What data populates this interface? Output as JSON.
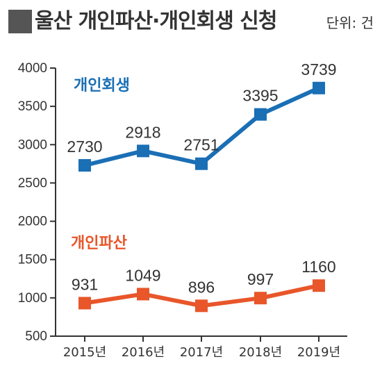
{
  "header": {
    "title": "울산 개인파산·개인회생 신청",
    "unit": "단위: 건",
    "marker_color": "#555555"
  },
  "chart_data": {
    "type": "line",
    "title": "울산 개인파산·개인회생 신청",
    "xlabel": "",
    "ylabel": "",
    "unit": "단위: 건",
    "categories": [
      "2015년",
      "2016년",
      "2017년",
      "2018년",
      "2019년"
    ],
    "yticks": [
      "4000",
      "3500",
      "3000",
      "2500",
      "2000",
      "1500",
      "1000",
      "500"
    ],
    "ylim": [
      500,
      4000
    ],
    "grid": false,
    "series": [
      {
        "name": "개인회생",
        "color": "#1a6fb5",
        "values": [
          2730,
          2918,
          2751,
          3395,
          3739
        ]
      },
      {
        "name": "개인파산",
        "color": "#e8562a",
        "values": [
          931,
          1049,
          896,
          997,
          1160
        ]
      }
    ]
  }
}
